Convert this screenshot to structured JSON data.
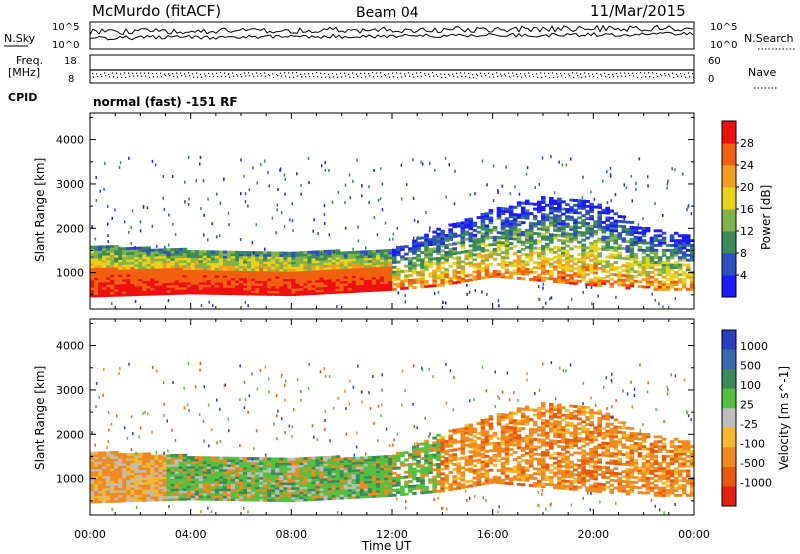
{
  "header": {
    "station": "McMurdo (fitACF)",
    "beam": "Beam 04",
    "date": "11/Mar/2015"
  },
  "noise_panel": {
    "left_label": "N.Sky",
    "right_label": "N.Search",
    "left_ticks": [
      "10^5",
      "10^0"
    ],
    "right_ticks": [
      "10^5",
      "10^0"
    ]
  },
  "freq_panel": {
    "left_label_1": "Freq.",
    "left_label_2": "[MHz]",
    "right_label": "Nave",
    "left_ticks": [
      "18",
      "8"
    ],
    "right_ticks": [
      "60",
      "0"
    ]
  },
  "cpid": {
    "label": "CPID",
    "value": "normal (fast) -151 RF"
  },
  "colors": {
    "power_scale": [
      "#1a1aff",
      "#2e4fc0",
      "#3a8a5a",
      "#7fb24a",
      "#e8d21a",
      "#f0a020",
      "#f06010",
      "#ee1010"
    ],
    "velocity_scale": [
      "#2a3fbf",
      "#3a6aa8",
      "#3a8a5a",
      "#55c040",
      "#bdbdbd",
      "#f2b830",
      "#f08a20",
      "#e85a10",
      "#e02010"
    ]
  },
  "chart_data": [
    {
      "type": "heatmap",
      "panel": "power",
      "ylabel": "Slant Range [km]",
      "colorbar_label": "Power [dB]",
      "colorbar_ticks": [
        "28",
        "24",
        "20",
        "16",
        "12",
        "8",
        "4"
      ],
      "x_ticks": [
        "00:00",
        "04:00",
        "08:00",
        "12:00",
        "16:00",
        "20:00",
        "00:00"
      ],
      "y_ticks": [
        "1000",
        "2000",
        "3000",
        "4000"
      ],
      "xlim_hours": [
        0,
        24
      ],
      "ylim_km": [
        180,
        4600
      ],
      "ylim_db": [
        0,
        32
      ],
      "region_boundaries": [
        {
          "t": 0,
          "bottom": 450,
          "top": 1600
        },
        {
          "t": 4,
          "bottom": 520,
          "top": 1500
        },
        {
          "t": 8,
          "bottom": 480,
          "top": 1450
        },
        {
          "t": 12,
          "bottom": 600,
          "top": 1500
        },
        {
          "t": 14,
          "bottom": 700,
          "top": 2000
        },
        {
          "t": 16,
          "bottom": 900,
          "top": 2400
        },
        {
          "t": 18,
          "bottom": 800,
          "top": 2700
        },
        {
          "t": 20,
          "bottom": 700,
          "top": 2600
        },
        {
          "t": 22,
          "bottom": 600,
          "top": 2000
        },
        {
          "t": 24,
          "bottom": 600,
          "top": 1800
        }
      ]
    },
    {
      "type": "heatmap",
      "panel": "velocity",
      "ylabel": "Slant Range [km]",
      "xlabel": "Time UT",
      "colorbar_label": "Velocity [m s^-1]",
      "colorbar_ticks": [
        "1000",
        "500",
        "100",
        "25",
        "-25",
        "-100",
        "-500",
        "-1000"
      ],
      "x_ticks": [
        "00:00",
        "04:00",
        "08:00",
        "12:00",
        "16:00",
        "20:00",
        "00:00"
      ],
      "y_ticks": [
        "1000",
        "2000",
        "3000",
        "4000"
      ],
      "xlim_hours": [
        0,
        24
      ],
      "ylim_km": [
        180,
        4600
      ],
      "ylim_velocity": [
        -1200,
        1200
      ]
    }
  ]
}
